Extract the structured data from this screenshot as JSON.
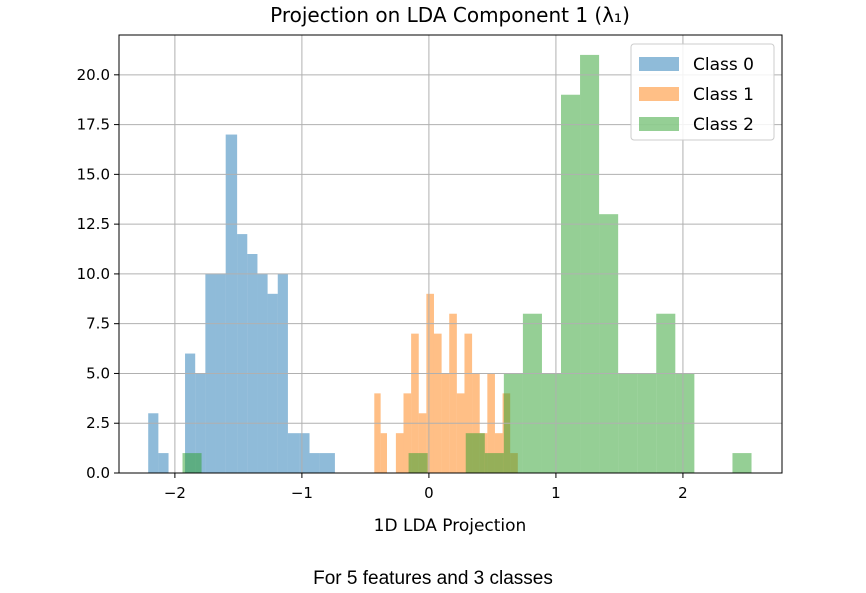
{
  "chart_data": {
    "type": "histogram",
    "title": "Projection on LDA Component 1 (λ₁)",
    "xlabel": "1D LDA Projection",
    "ylabel": "",
    "xlim": [
      -2.44,
      2.78
    ],
    "ylim": [
      0,
      22
    ],
    "x_ticks": [
      -2,
      -1,
      0,
      1,
      2
    ],
    "x_tick_labels": [
      "−2",
      "−1",
      "0",
      "1",
      "2"
    ],
    "y_ticks": [
      0,
      2.5,
      5,
      7.5,
      10,
      12.5,
      15,
      17.5,
      20
    ],
    "y_tick_labels": [
      "0.0",
      "2.5",
      "5.0",
      "7.5",
      "10.0",
      "12.5",
      "15.0",
      "17.5",
      "20.0"
    ],
    "grid": true,
    "legend_position": "top-right",
    "series": [
      {
        "name": "Class 0",
        "color": "#1f77b4",
        "opacity": 0.5,
        "bins": [
          [
            -2.21,
            -2.13,
            3
          ],
          [
            -2.13,
            -2.05,
            1
          ],
          [
            -1.92,
            -1.84,
            6
          ],
          [
            -1.84,
            -1.76,
            5
          ],
          [
            -1.76,
            -1.68,
            10
          ],
          [
            -1.68,
            -1.6,
            10
          ],
          [
            -1.6,
            -1.51,
            17
          ],
          [
            -1.51,
            -1.43,
            12
          ],
          [
            -1.43,
            -1.35,
            11
          ],
          [
            -1.35,
            -1.27,
            10
          ],
          [
            -1.27,
            -1.19,
            9
          ],
          [
            -1.19,
            -1.11,
            10
          ],
          [
            -1.11,
            -1.02,
            2
          ],
          [
            -1.02,
            -0.94,
            2
          ],
          [
            -0.94,
            -0.86,
            1
          ],
          [
            -0.86,
            -0.74,
            1
          ]
        ]
      },
      {
        "name": "Class 1",
        "color": "#ff7f0e",
        "opacity": 0.5,
        "bins": [
          [
            -0.43,
            -0.38,
            4
          ],
          [
            -0.38,
            -0.33,
            2
          ],
          [
            -0.26,
            -0.2,
            2
          ],
          [
            -0.2,
            -0.14,
            4
          ],
          [
            -0.14,
            -0.08,
            7
          ],
          [
            -0.08,
            -0.02,
            3
          ],
          [
            -0.02,
            0.04,
            9
          ],
          [
            0.04,
            0.1,
            7
          ],
          [
            0.1,
            0.16,
            5
          ],
          [
            0.16,
            0.22,
            8
          ],
          [
            0.22,
            0.28,
            4
          ],
          [
            0.28,
            0.34,
            7
          ],
          [
            0.34,
            0.4,
            5
          ],
          [
            0.4,
            0.46,
            2
          ],
          [
            0.46,
            0.52,
            5
          ],
          [
            0.52,
            0.58,
            2
          ],
          [
            0.58,
            0.64,
            4
          ],
          [
            0.64,
            0.7,
            1
          ]
        ]
      },
      {
        "name": "Class 2",
        "color": "#2ca02c",
        "opacity": 0.5,
        "bins": [
          [
            -1.94,
            -1.79,
            1
          ],
          [
            -0.16,
            -0.01,
            1
          ],
          [
            0.29,
            0.44,
            2
          ],
          [
            0.44,
            0.59,
            1
          ],
          [
            0.59,
            0.74,
            5
          ],
          [
            0.74,
            0.89,
            8
          ],
          [
            0.89,
            1.04,
            5
          ],
          [
            1.04,
            1.19,
            19
          ],
          [
            1.19,
            1.34,
            21
          ],
          [
            1.34,
            1.49,
            13
          ],
          [
            1.49,
            1.64,
            5
          ],
          [
            1.64,
            1.79,
            5
          ],
          [
            1.79,
            1.94,
            8
          ],
          [
            1.94,
            2.09,
            5
          ],
          [
            2.39,
            2.54,
            1
          ]
        ]
      }
    ]
  },
  "caption": "For 5 features and 3 classes"
}
